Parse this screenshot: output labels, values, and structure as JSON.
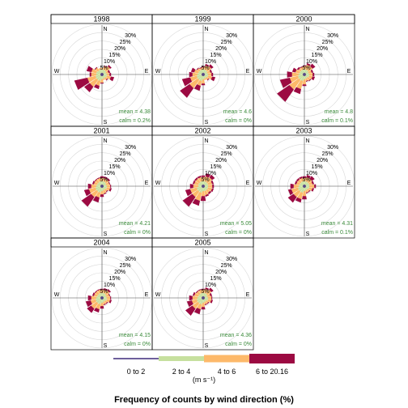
{
  "chart_data": {
    "type": "windrose",
    "title": "",
    "xlabel": "Frequency of counts by wind direction (%)",
    "units_label": "(m s⁻¹)",
    "compass": [
      "N",
      "E",
      "S",
      "W"
    ],
    "rings": [
      "5%",
      "10%",
      "15%",
      "20%",
      "25%",
      "30%"
    ],
    "ring_values": [
      5,
      10,
      15,
      20,
      25,
      30
    ],
    "bins": [
      {
        "label": "0 to 2",
        "color": "#3e2a7a"
      },
      {
        "label": "2 to 4",
        "color": "#c6e09e"
      },
      {
        "label": "4 to 6",
        "color": "#fdb96a"
      },
      {
        "label": "6 to 20.16",
        "color": "#9c0a42"
      }
    ],
    "panels": [
      {
        "year": "1998",
        "mean": "mean = 4.38",
        "calm": "calm = 0.2%",
        "petals": [
          [
            1,
            2,
            1,
            0
          ],
          [
            1,
            2,
            2,
            0.5
          ],
          [
            1,
            2,
            3,
            1
          ],
          [
            1,
            1.5,
            1.5,
            1
          ],
          [
            1,
            2,
            1.5,
            1
          ],
          [
            1,
            2,
            2.5,
            2
          ],
          [
            1,
            1.5,
            1.5,
            0.5
          ],
          [
            1,
            1.5,
            1,
            0
          ],
          [
            1,
            2,
            2,
            0.5
          ],
          [
            1,
            3,
            3,
            2
          ],
          [
            1,
            3,
            5,
            4
          ],
          [
            1,
            3,
            5,
            8
          ],
          [
            1,
            2.5,
            3,
            1
          ],
          [
            1,
            2.5,
            3,
            3
          ],
          [
            1,
            2,
            2,
            0.5
          ],
          [
            1,
            2,
            1,
            0
          ]
        ]
      },
      {
        "year": "1999",
        "mean": "mean = 4.6",
        "calm": "calm = 0%",
        "petals": [
          [
            1,
            2,
            1.5,
            0.5
          ],
          [
            1,
            2,
            2.5,
            1
          ],
          [
            1,
            2,
            3,
            1.5
          ],
          [
            1,
            1.5,
            2,
            1
          ],
          [
            1,
            2,
            2,
            1
          ],
          [
            1,
            2,
            2.5,
            2
          ],
          [
            1,
            1.5,
            1.5,
            0.5
          ],
          [
            1,
            1.5,
            1,
            0
          ],
          [
            1,
            2,
            2.5,
            1
          ],
          [
            1,
            3,
            3,
            3
          ],
          [
            1,
            3,
            6,
            7
          ],
          [
            1,
            3,
            4,
            5
          ],
          [
            1,
            2.5,
            3,
            2
          ],
          [
            1,
            2,
            2.5,
            2
          ],
          [
            1,
            2,
            1.5,
            0.5
          ],
          [
            1,
            2,
            1,
            0.5
          ]
        ]
      },
      {
        "year": "2000",
        "mean": "mean = 4.8",
        "calm": "calm = 0.1%",
        "petals": [
          [
            1,
            2,
            2,
            0.5
          ],
          [
            1,
            2,
            3,
            1
          ],
          [
            1,
            2,
            3,
            2
          ],
          [
            1,
            1.5,
            2,
            1
          ],
          [
            1,
            2,
            2,
            1
          ],
          [
            1,
            2,
            2,
            1.5
          ],
          [
            1,
            1.5,
            2,
            0.5
          ],
          [
            1,
            1.5,
            1.5,
            0.5
          ],
          [
            1,
            2,
            3,
            1
          ],
          [
            1,
            3,
            5,
            3
          ],
          [
            1,
            3,
            7,
            9
          ],
          [
            1,
            3,
            5,
            6
          ],
          [
            1,
            2.5,
            4,
            3
          ],
          [
            1,
            2,
            2.5,
            2
          ],
          [
            1,
            2,
            1.5,
            1
          ],
          [
            1,
            2,
            1.5,
            0.5
          ]
        ]
      },
      {
        "year": "2001",
        "mean": "mean = 4.21",
        "calm": "calm = 0%",
        "petals": [
          [
            1,
            2,
            2,
            1
          ],
          [
            1,
            2,
            2,
            1
          ],
          [
            1,
            2,
            2,
            1
          ],
          [
            1,
            1.5,
            2,
            0.5
          ],
          [
            1,
            2,
            2,
            0.5
          ],
          [
            1,
            2,
            2,
            1
          ],
          [
            1,
            1.5,
            1.5,
            0.5
          ],
          [
            1,
            1.5,
            2,
            0.5
          ],
          [
            1,
            2,
            2,
            1.5
          ],
          [
            1,
            3,
            3,
            3
          ],
          [
            1,
            3,
            4,
            7
          ],
          [
            1,
            3,
            4,
            3
          ],
          [
            1,
            2.5,
            3,
            2
          ],
          [
            1,
            2,
            2,
            1
          ],
          [
            1,
            2,
            2,
            0.5
          ],
          [
            1,
            2,
            2,
            0.5
          ]
        ]
      },
      {
        "year": "2002",
        "mean": "mean = 5.05",
        "calm": "calm = 0%",
        "petals": [
          [
            1,
            2,
            2.5,
            1
          ],
          [
            1,
            2,
            3,
            2
          ],
          [
            1,
            2,
            3.5,
            2
          ],
          [
            1,
            2,
            2.5,
            1
          ],
          [
            1,
            2,
            2.5,
            1
          ],
          [
            1,
            2,
            2.5,
            1
          ],
          [
            1,
            2,
            2,
            1
          ],
          [
            1,
            2,
            2.5,
            1
          ],
          [
            1,
            2,
            3,
            3
          ],
          [
            1,
            3,
            5,
            3
          ],
          [
            1,
            3,
            4,
            7
          ],
          [
            1,
            3,
            4,
            3
          ],
          [
            1,
            2,
            3,
            2
          ],
          [
            1,
            2,
            2.5,
            1
          ],
          [
            1,
            2,
            2.5,
            1
          ],
          [
            1,
            2,
            2.5,
            1
          ]
        ]
      },
      {
        "year": "2003",
        "mean": "mean = 4.31",
        "calm": "calm = 0.1%",
        "petals": [
          [
            1,
            2,
            2,
            1
          ],
          [
            1,
            2,
            2.5,
            1.5
          ],
          [
            1,
            2,
            2.5,
            2
          ],
          [
            1,
            2,
            2,
            1
          ],
          [
            1,
            2,
            3,
            1
          ],
          [
            1,
            2,
            2,
            1
          ],
          [
            1,
            1.5,
            1.5,
            0.5
          ],
          [
            1,
            1.5,
            1.5,
            0.5
          ],
          [
            1,
            2,
            3,
            2
          ],
          [
            1,
            3,
            4,
            2
          ],
          [
            1,
            3,
            4,
            4
          ],
          [
            1,
            3,
            4,
            2
          ],
          [
            1,
            2.5,
            3,
            2
          ],
          [
            1,
            2,
            2,
            1
          ],
          [
            1,
            2,
            2,
            1
          ],
          [
            1,
            2,
            2,
            1
          ]
        ]
      },
      {
        "year": "2004",
        "mean": "mean = 4.15",
        "calm": "calm = 0%",
        "petals": [
          [
            1,
            2,
            2,
            0.5
          ],
          [
            1,
            2,
            2,
            1
          ],
          [
            1,
            2,
            2.5,
            1
          ],
          [
            1,
            1.5,
            2,
            0.5
          ],
          [
            1,
            2,
            2,
            0.5
          ],
          [
            1,
            2,
            2,
            1
          ],
          [
            1,
            1.5,
            1.5,
            0.5
          ],
          [
            1,
            1.5,
            1.5,
            0.5
          ],
          [
            1,
            2,
            2,
            1.5
          ],
          [
            1,
            3,
            3,
            2
          ],
          [
            1,
            3,
            4,
            3
          ],
          [
            1,
            3,
            3,
            3
          ],
          [
            1,
            2.5,
            3,
            2
          ],
          [
            1,
            2,
            2,
            1
          ],
          [
            1,
            2,
            2,
            0.5
          ],
          [
            1,
            2,
            2,
            0.5
          ]
        ]
      },
      {
        "year": "2005",
        "mean": "mean = 4.36",
        "calm": "calm = 0%",
        "petals": [
          [
            1,
            2,
            2,
            0.5
          ],
          [
            1,
            2,
            2.5,
            1
          ],
          [
            1,
            2,
            3,
            1.5
          ],
          [
            1,
            1.5,
            2,
            1
          ],
          [
            1,
            2,
            2,
            0.5
          ],
          [
            1,
            2,
            2,
            1
          ],
          [
            1,
            1.5,
            1.5,
            0.5
          ],
          [
            1,
            1.5,
            1.5,
            0.5
          ],
          [
            1,
            2,
            2.5,
            1.5
          ],
          [
            1,
            3,
            3,
            3
          ],
          [
            1,
            3,
            4,
            5
          ],
          [
            1,
            3,
            3,
            3
          ],
          [
            1,
            2.5,
            3,
            2
          ],
          [
            1,
            2,
            2.5,
            1
          ],
          [
            1,
            2,
            2,
            0.5
          ],
          [
            1,
            2,
            2,
            0.5
          ]
        ]
      }
    ]
  }
}
